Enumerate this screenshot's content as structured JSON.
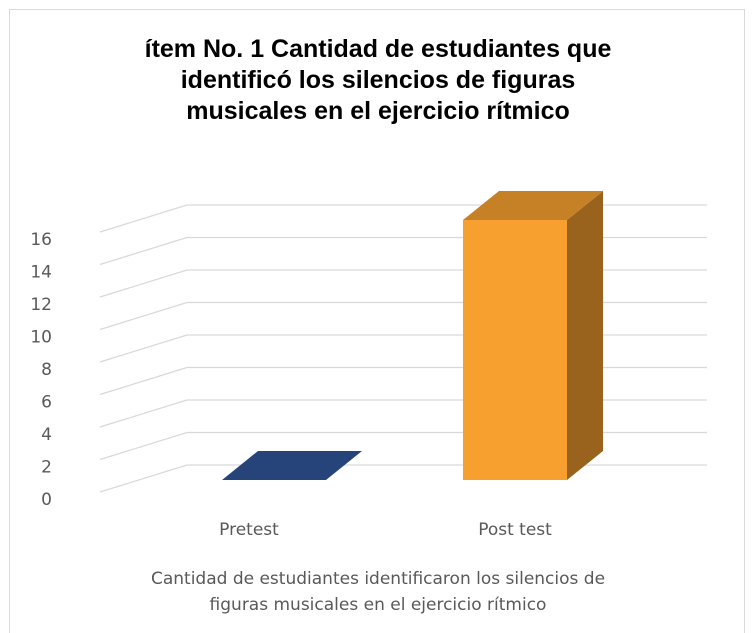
{
  "chart_data": {
    "type": "bar3d",
    "title": "ítem No. 1 Cantidad de estudiantes que identificó los silencios de figuras musicales en el ejercicio rítmico",
    "x_label": "Cantidad de estudiantes identificaron los silencios de figuras musicales en el ejercicio rítmico",
    "categories": [
      "Pretest",
      "Post test"
    ],
    "values": [
      0,
      16
    ],
    "colors": [
      "#2f5597",
      "#f7a030"
    ],
    "ylim": [
      0,
      16
    ],
    "yticks": [
      0,
      2,
      4,
      6,
      8,
      10,
      12,
      14,
      16
    ],
    "grid": true
  }
}
